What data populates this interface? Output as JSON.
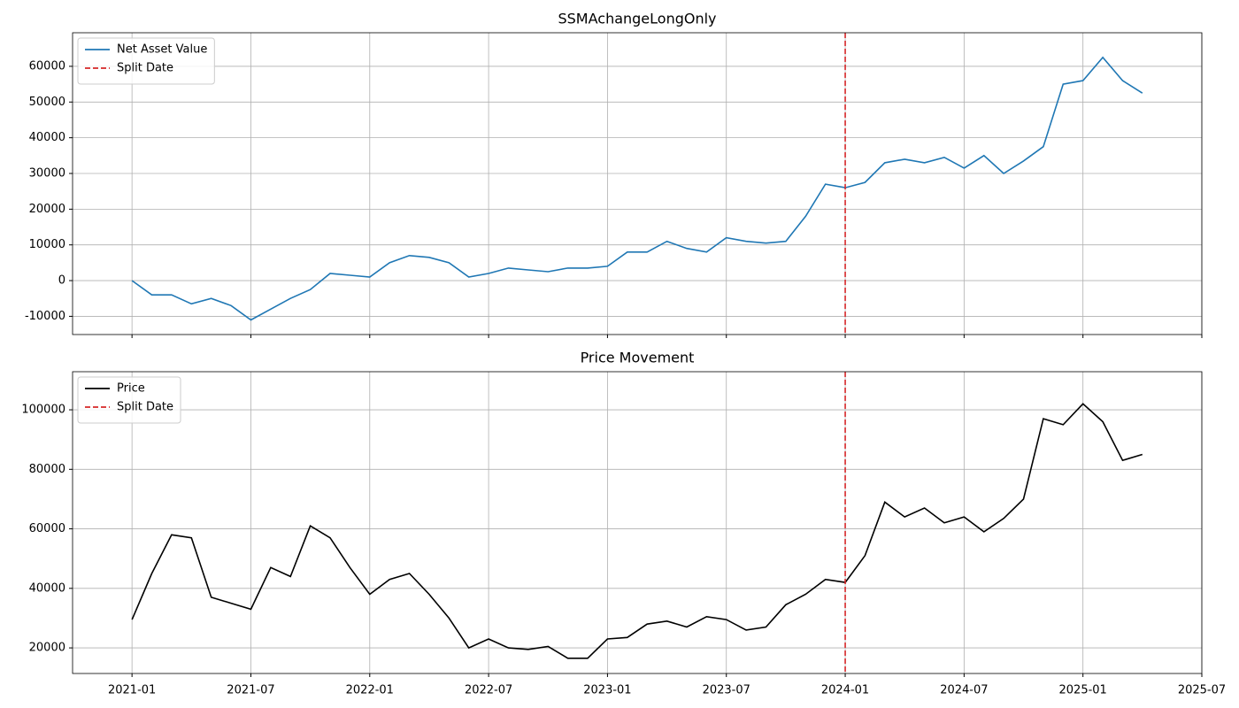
{
  "chart_data": [
    {
      "type": "line",
      "title": "SSMAchangeLongOnly",
      "x": [
        "2021-01",
        "2021-02",
        "2021-03",
        "2021-04",
        "2021-05",
        "2021-06",
        "2021-07",
        "2021-08",
        "2021-09",
        "2021-10",
        "2021-11",
        "2021-12",
        "2022-01",
        "2022-02",
        "2022-03",
        "2022-04",
        "2022-05",
        "2022-06",
        "2022-07",
        "2022-08",
        "2022-09",
        "2022-10",
        "2022-11",
        "2022-12",
        "2023-01",
        "2023-02",
        "2023-03",
        "2023-04",
        "2023-05",
        "2023-06",
        "2023-07",
        "2023-08",
        "2023-09",
        "2023-10",
        "2023-11",
        "2023-12",
        "2024-01",
        "2024-02",
        "2024-03",
        "2024-04",
        "2024-05",
        "2024-06",
        "2024-07",
        "2024-08",
        "2024-09",
        "2024-10",
        "2024-11",
        "2024-12",
        "2025-01",
        "2025-02",
        "2025-03",
        "2025-04"
      ],
      "series": [
        {
          "name": "Net Asset Value",
          "color": "#1f77b4",
          "values": [
            0,
            -4000,
            -4000,
            -6500,
            -5000,
            -7000,
            -11000,
            -8000,
            -5000,
            -2500,
            2000,
            1500,
            1000,
            5000,
            7000,
            6500,
            5000,
            1000,
            2000,
            3500,
            3000,
            2500,
            3500,
            3500,
            4000,
            8000,
            8000,
            11000,
            9000,
            8000,
            12000,
            11000,
            10500,
            11000,
            18000,
            27000,
            26000,
            27500,
            33000,
            34000,
            33000,
            34500,
            31500,
            35000,
            30000,
            33500,
            37500,
            55000,
            56000,
            62500,
            56000,
            52500
          ]
        }
      ],
      "vline": {
        "name": "Split Date",
        "x": "2024-01",
        "color": "#d62728"
      },
      "xlim": [
        "2020-10",
        "2025-07"
      ],
      "xticks": [
        "2021-01",
        "2021-07",
        "2022-01",
        "2022-07",
        "2023-01",
        "2023-07",
        "2024-01",
        "2024-07",
        "2025-01",
        "2025-07"
      ],
      "show_xtick_labels": false,
      "ylim": [
        -15100,
        69400
      ],
      "yticks": [
        -10000,
        0,
        10000,
        20000,
        30000,
        40000,
        50000,
        60000
      ],
      "grid": true,
      "legend": "upper-left"
    },
    {
      "type": "line",
      "title": "Price Movement",
      "x": [
        "2021-01",
        "2021-02",
        "2021-03",
        "2021-04",
        "2021-05",
        "2021-06",
        "2021-07",
        "2021-08",
        "2021-09",
        "2021-10",
        "2021-11",
        "2021-12",
        "2022-01",
        "2022-02",
        "2022-03",
        "2022-04",
        "2022-05",
        "2022-06",
        "2022-07",
        "2022-08",
        "2022-09",
        "2022-10",
        "2022-11",
        "2022-12",
        "2023-01",
        "2023-02",
        "2023-03",
        "2023-04",
        "2023-05",
        "2023-06",
        "2023-07",
        "2023-08",
        "2023-09",
        "2023-10",
        "2023-11",
        "2023-12",
        "2024-01",
        "2024-02",
        "2024-03",
        "2024-04",
        "2024-05",
        "2024-06",
        "2024-07",
        "2024-08",
        "2024-09",
        "2024-10",
        "2024-11",
        "2024-12",
        "2025-01",
        "2025-02",
        "2025-03",
        "2025-04"
      ],
      "series": [
        {
          "name": "Price",
          "color": "#000000",
          "values": [
            29500,
            45000,
            58000,
            57000,
            37000,
            35000,
            33000,
            47000,
            44000,
            61000,
            57000,
            47000,
            38000,
            43000,
            45000,
            38000,
            30000,
            20000,
            23000,
            20000,
            19500,
            20500,
            16500,
            16500,
            23000,
            23500,
            28000,
            29000,
            27000,
            30500,
            29500,
            26000,
            27000,
            34500,
            38000,
            43000,
            42000,
            51000,
            69000,
            64000,
            67000,
            62000,
            64000,
            59000,
            63500,
            70000,
            97000,
            95000,
            102000,
            96000,
            83000,
            85000
          ]
        }
      ],
      "vline": {
        "name": "Split Date",
        "x": "2024-01",
        "color": "#d62728"
      },
      "xlim": [
        "2020-10",
        "2025-07"
      ],
      "xticks": [
        "2021-01",
        "2021-07",
        "2022-01",
        "2022-07",
        "2023-01",
        "2023-07",
        "2024-01",
        "2024-07",
        "2025-01",
        "2025-07"
      ],
      "show_xtick_labels": true,
      "ylim": [
        11400,
        112800
      ],
      "yticks": [
        20000,
        40000,
        60000,
        80000,
        100000
      ],
      "grid": true,
      "legend": "upper-left"
    }
  ]
}
